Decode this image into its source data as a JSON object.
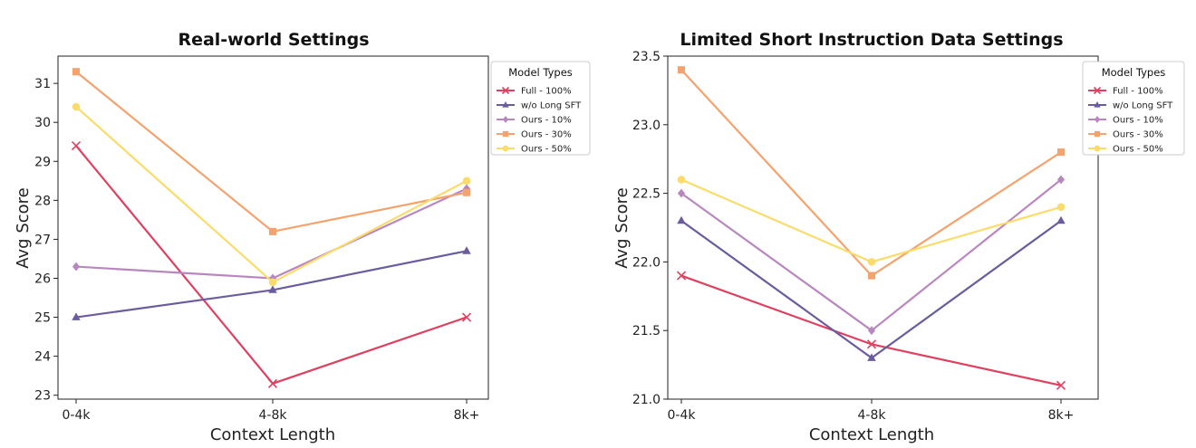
{
  "chart_data": [
    {
      "type": "line",
      "title": "Real-world Settings",
      "xlabel": "Context Length",
      "ylabel": "Avg Score",
      "categories": [
        "0-4k",
        "4-8k",
        "8k+"
      ],
      "ylim": [
        22.9,
        31.7
      ],
      "yticks": [
        23,
        24,
        25,
        26,
        27,
        28,
        29,
        30,
        31
      ],
      "legend": {
        "title": "Model Types",
        "placement": "outside-top-right"
      },
      "series": [
        {
          "name": "Full - 100%",
          "values": [
            29.4,
            23.3,
            25.0
          ],
          "color": "#e0405f",
          "marker": "x"
        },
        {
          "name": "w/o Long SFT",
          "values": [
            25.0,
            25.7,
            26.7
          ],
          "color": "#6b5c9e",
          "marker": "triangle"
        },
        {
          "name": "Ours - 10%",
          "values": [
            26.3,
            26.0,
            28.3
          ],
          "color": "#b987bf",
          "marker": "diamond"
        },
        {
          "name": "Ours - 30%",
          "values": [
            31.3,
            27.2,
            28.2
          ],
          "color": "#f4a26e",
          "marker": "square"
        },
        {
          "name": "Ours - 50%",
          "values": [
            30.4,
            25.9,
            28.5
          ],
          "color": "#fbdc6a",
          "marker": "circle"
        }
      ]
    },
    {
      "type": "line",
      "title": "Limited Short Instruction Data Settings",
      "xlabel": "Context Length",
      "ylabel": "Avg Score",
      "categories": [
        "0-4k",
        "4-8k",
        "8k+"
      ],
      "ylim": [
        21.0,
        23.5
      ],
      "yticks": [
        "21.0",
        "21.5",
        "22.0",
        "22.5",
        "23.0",
        "23.5"
      ],
      "legend": {
        "title": "Model Types",
        "placement": "outside-top-right"
      },
      "series": [
        {
          "name": "Full - 100%",
          "values": [
            21.9,
            21.4,
            21.1
          ],
          "color": "#e0405f",
          "marker": "x"
        },
        {
          "name": "w/o Long SFT",
          "values": [
            22.3,
            21.3,
            22.3
          ],
          "color": "#6b5c9e",
          "marker": "triangle"
        },
        {
          "name": "Ours - 10%",
          "values": [
            22.5,
            21.5,
            22.6
          ],
          "color": "#b987bf",
          "marker": "diamond"
        },
        {
          "name": "Ours - 30%",
          "values": [
            23.4,
            21.9,
            22.8
          ],
          "color": "#f4a26e",
          "marker": "square"
        },
        {
          "name": "Ours - 50%",
          "values": [
            22.6,
            22.0,
            22.4
          ],
          "color": "#fbdc6a",
          "marker": "circle"
        }
      ]
    }
  ]
}
